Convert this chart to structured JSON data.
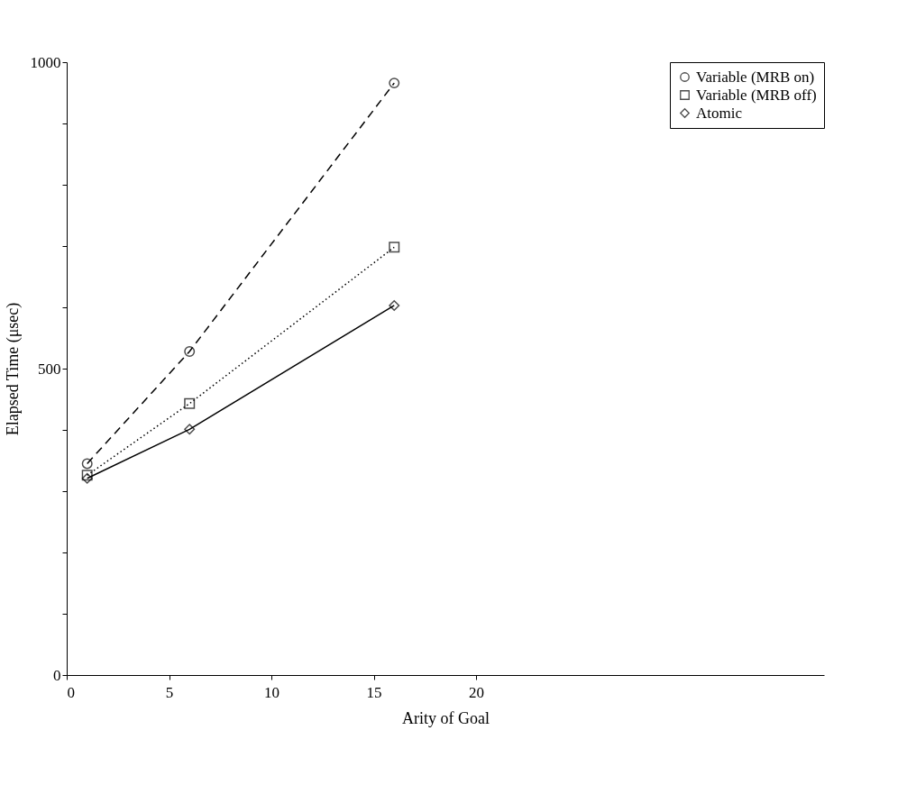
{
  "chart_data": {
    "type": "line",
    "xlabel": "Arity of Goal",
    "ylabel": "Elapsed Time (μsec)",
    "x": [
      1,
      6,
      16
    ],
    "series": [
      {
        "name": "Variable (MRB on)",
        "color": "#000000",
        "values": [
          345,
          528,
          966
        ],
        "marker": "circle",
        "line_style": "dashed"
      },
      {
        "name": "Variable (MRB off)",
        "color": "#000000",
        "values": [
          326,
          443,
          698
        ],
        "marker": "square",
        "line_style": "dotted"
      },
      {
        "name": "Atomic",
        "color": "#000000",
        "values": [
          321,
          401,
          603
        ],
        "marker": "diamond",
        "line_style": "solid"
      }
    ],
    "xlim": [
      0,
      37
    ],
    "xticks": [
      0,
      5,
      10,
      15,
      20
    ],
    "ylim": [
      0,
      1000
    ],
    "yticks": [
      0,
      {
        "value": 100,
        "label": null
      },
      {
        "value": 200,
        "label": null
      },
      {
        "value": 300,
        "label": null
      },
      {
        "value": 400,
        "label": null
      },
      500,
      {
        "value": 600,
        "label": null
      },
      {
        "value": 700,
        "label": null
      },
      {
        "value": 800,
        "label": null
      },
      {
        "value": 900,
        "label": null
      },
      1000
    ],
    "grid": false,
    "legend": "top right"
  }
}
